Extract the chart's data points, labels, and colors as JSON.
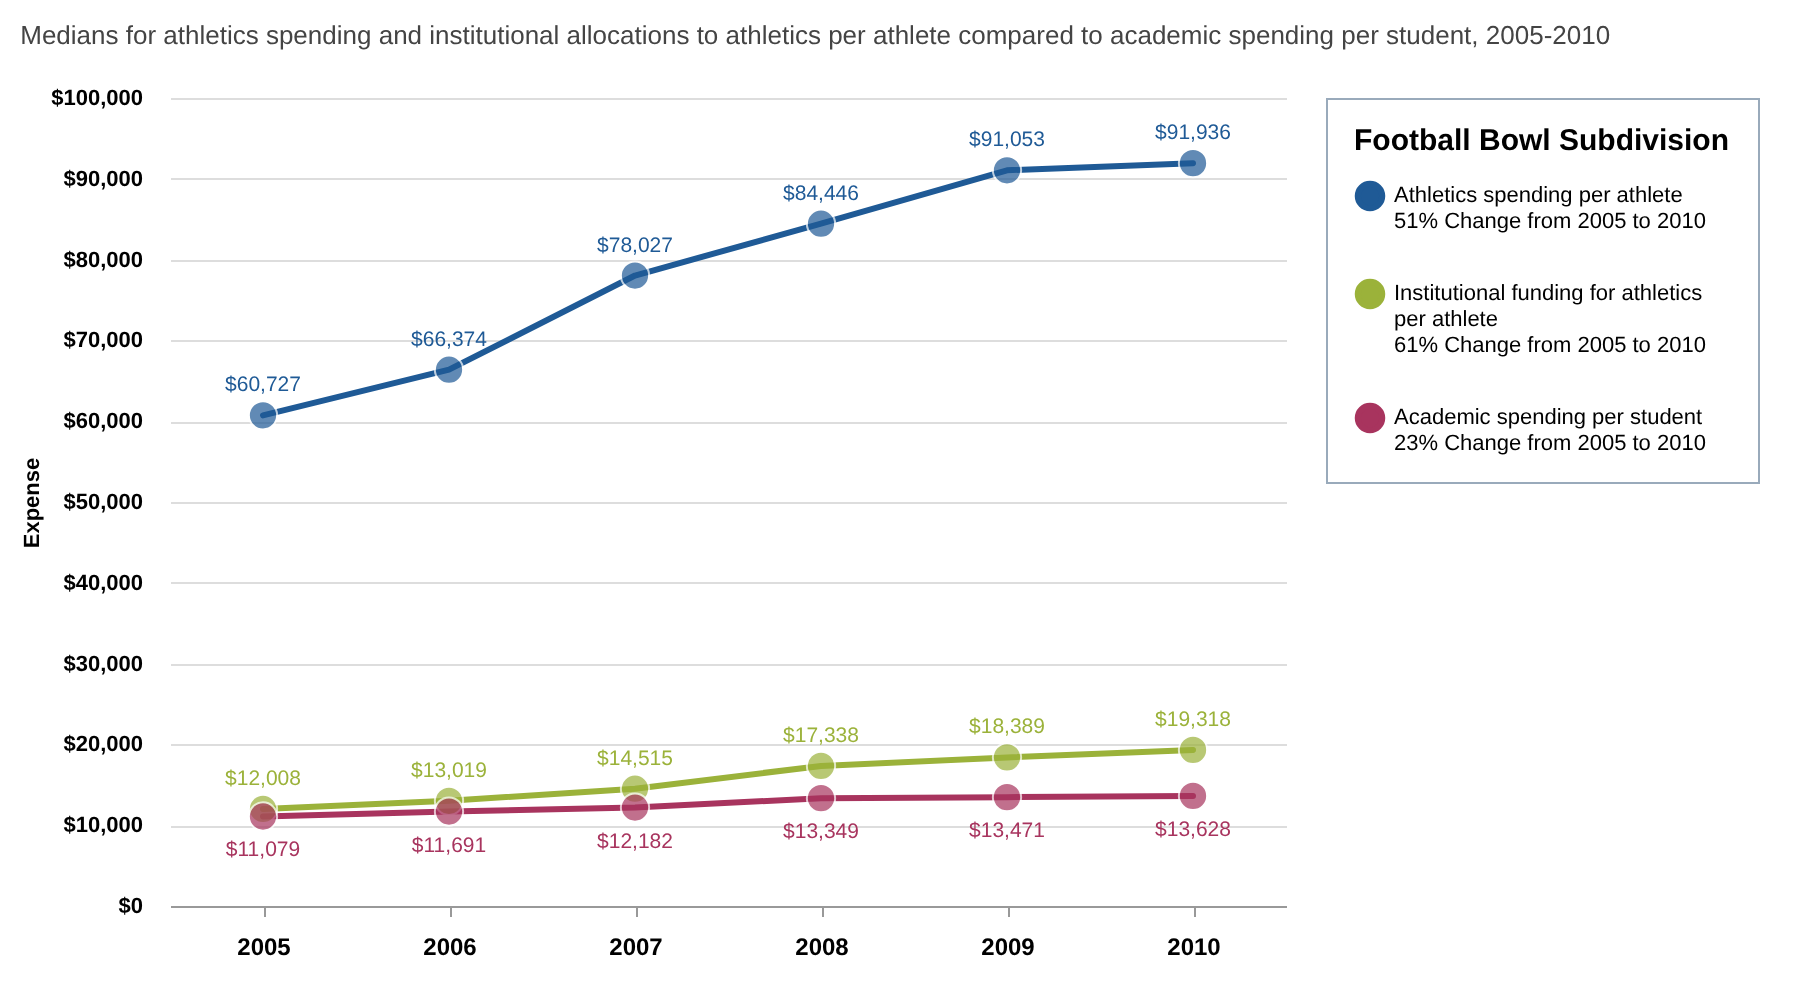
{
  "chart_data": {
    "type": "line",
    "title": "Medians for athletics spending and institutional allocations to athletics per athlete compared to academic spending per student, 2005-2010",
    "ylabel": "Expense",
    "legend_title": "Football Bowl Subdivision",
    "categories": [
      "2005",
      "2006",
      "2007",
      "2008",
      "2009",
      "2010"
    ],
    "series": [
      {
        "name": "Athletics spending per athlete",
        "color": "#1f5a96",
        "values": [
          60727,
          66374,
          78027,
          84446,
          91053,
          91936
        ],
        "value_labels": [
          "$60,727",
          "$66,374",
          "$78,027",
          "$84,446",
          "$91,053",
          "$91,936"
        ]
      },
      {
        "name": "Institutional funding for athletics per athlete",
        "color": "#9bb23a",
        "values": [
          12008,
          13019,
          14515,
          17338,
          18389,
          19318
        ],
        "value_labels": [
          "$12,008",
          "$13,019",
          "$14,515",
          "$17,338",
          "$18,389",
          "$19,318"
        ]
      },
      {
        "name": "Academic spending per student",
        "color": "#a8345e",
        "values": [
          11079,
          11691,
          12182,
          13349,
          13471,
          13628
        ],
        "value_labels": [
          "$11,079",
          "$11,691",
          "$12,182",
          "$13,349",
          "$13,471",
          "$13,628"
        ]
      }
    ],
    "annotations": [
      "51% Change from 2005 to 2010",
      "61% Change from 2005 to 2010",
      "23% Change from 2005 to 2010"
    ],
    "ylim": [
      0,
      100000
    ],
    "yticks": [
      {
        "value": 0,
        "label": "$0"
      },
      {
        "value": 10000,
        "label": "$10,000"
      },
      {
        "value": 20000,
        "label": "$20,000"
      },
      {
        "value": 30000,
        "label": "$30,000"
      },
      {
        "value": 40000,
        "label": "$40,000"
      },
      {
        "value": 50000,
        "label": "$50,000"
      },
      {
        "value": 60000,
        "label": "$60,000"
      },
      {
        "value": 70000,
        "label": "$70,000"
      },
      {
        "value": 80000,
        "label": "$80,000"
      },
      {
        "value": 90000,
        "label": "$90,000"
      },
      {
        "value": 100000,
        "label": "$100,000"
      }
    ],
    "grid": "y",
    "legend": "right",
    "marker": "circle",
    "line_style": "solid"
  }
}
